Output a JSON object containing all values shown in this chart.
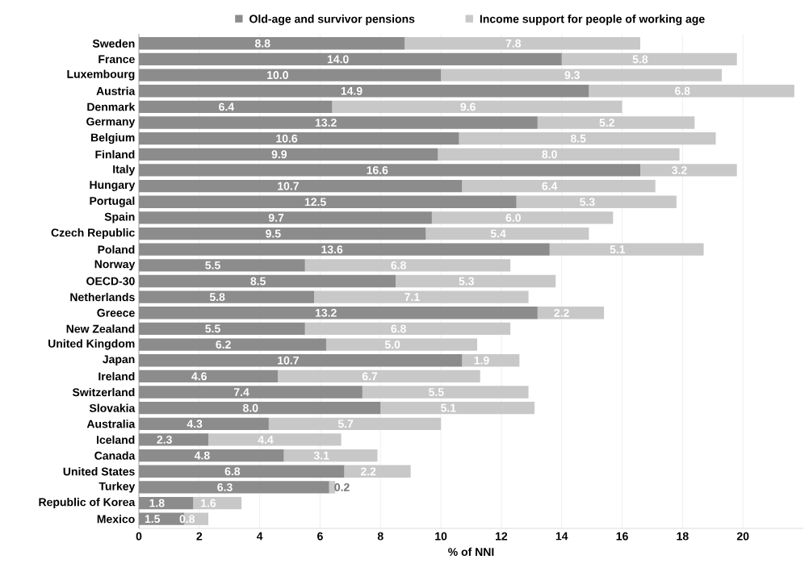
{
  "chart_data": {
    "type": "bar",
    "orientation": "horizontal",
    "stacked": true,
    "xlabel": "% of NNI",
    "categories": [
      "Sweden",
      "France",
      "Luxembourg",
      "Austria",
      "Denmark",
      "Germany",
      "Belgium",
      "Finland",
      "Italy",
      "Hungary",
      "Portugal",
      "Spain",
      "Czech Republic",
      "Poland",
      "Norway",
      "OECD-30",
      "Netherlands",
      "Greece",
      "New Zealand",
      "United Kingdom",
      "Japan",
      "Ireland",
      "Switzerland",
      "Slovakia",
      "Australia",
      "Iceland",
      "Canada",
      "United States",
      "Turkey",
      "Republic of Korea",
      "Mexico"
    ],
    "series": [
      {
        "name": "Old-age and survivor pensions",
        "color": "#8c8c8c",
        "values": [
          8.8,
          14.0,
          10.0,
          14.9,
          6.4,
          13.2,
          10.6,
          9.9,
          16.6,
          10.7,
          12.5,
          9.7,
          9.5,
          13.6,
          5.5,
          8.5,
          5.8,
          13.2,
          5.5,
          6.2,
          10.7,
          4.6,
          7.4,
          8.0,
          4.3,
          2.3,
          4.8,
          6.8,
          6.3,
          1.8,
          1.5
        ],
        "value_labels": [
          "8.8",
          "14.0",
          "10.0",
          "14.9",
          "6.4",
          "13.2",
          "10.6",
          "9.9",
          "16.6",
          "10.7",
          "12.5",
          "9.7",
          "9.5",
          "13.6",
          "5.5",
          "8.5",
          "5.8",
          "13.2",
          "5.5",
          "6.2",
          "10.7",
          "4.6",
          "7.4",
          "8.0",
          "4.3",
          "2.3",
          "4.8",
          "6.8",
          "6.3",
          "1.8",
          "1.5"
        ]
      },
      {
        "name": "Income support for people of working age",
        "color": "#c8c8c8",
        "values": [
          7.8,
          5.8,
          9.3,
          6.8,
          9.6,
          5.2,
          8.5,
          8.0,
          3.2,
          6.4,
          5.3,
          6.0,
          5.4,
          5.1,
          6.8,
          5.3,
          7.1,
          2.2,
          6.8,
          5.0,
          1.9,
          6.7,
          5.5,
          5.1,
          5.7,
          4.4,
          3.1,
          2.2,
          0.2,
          1.6,
          0.8
        ],
        "value_labels": [
          "7.8",
          "5.8",
          "9.3",
          "6.8",
          "9.6",
          "5.2",
          "8.5",
          "8.0",
          "3.2",
          "6.4",
          "5.3",
          "6.0",
          "5.4",
          "5.1",
          "6.8",
          "5.3",
          "7.1",
          "2.2",
          "6.8",
          "5.0",
          "1.9",
          "6.7",
          "5.5",
          "5.1",
          "5.7",
          "4.4",
          "3.1",
          "2.2",
          "0.2",
          "1.6",
          "0.8"
        ]
      }
    ],
    "xlim": [
      0,
      22
    ],
    "xticks": [
      0,
      2,
      4,
      6,
      8,
      10,
      12,
      14,
      16,
      18,
      20
    ],
    "grid": "x",
    "legend": "top"
  }
}
